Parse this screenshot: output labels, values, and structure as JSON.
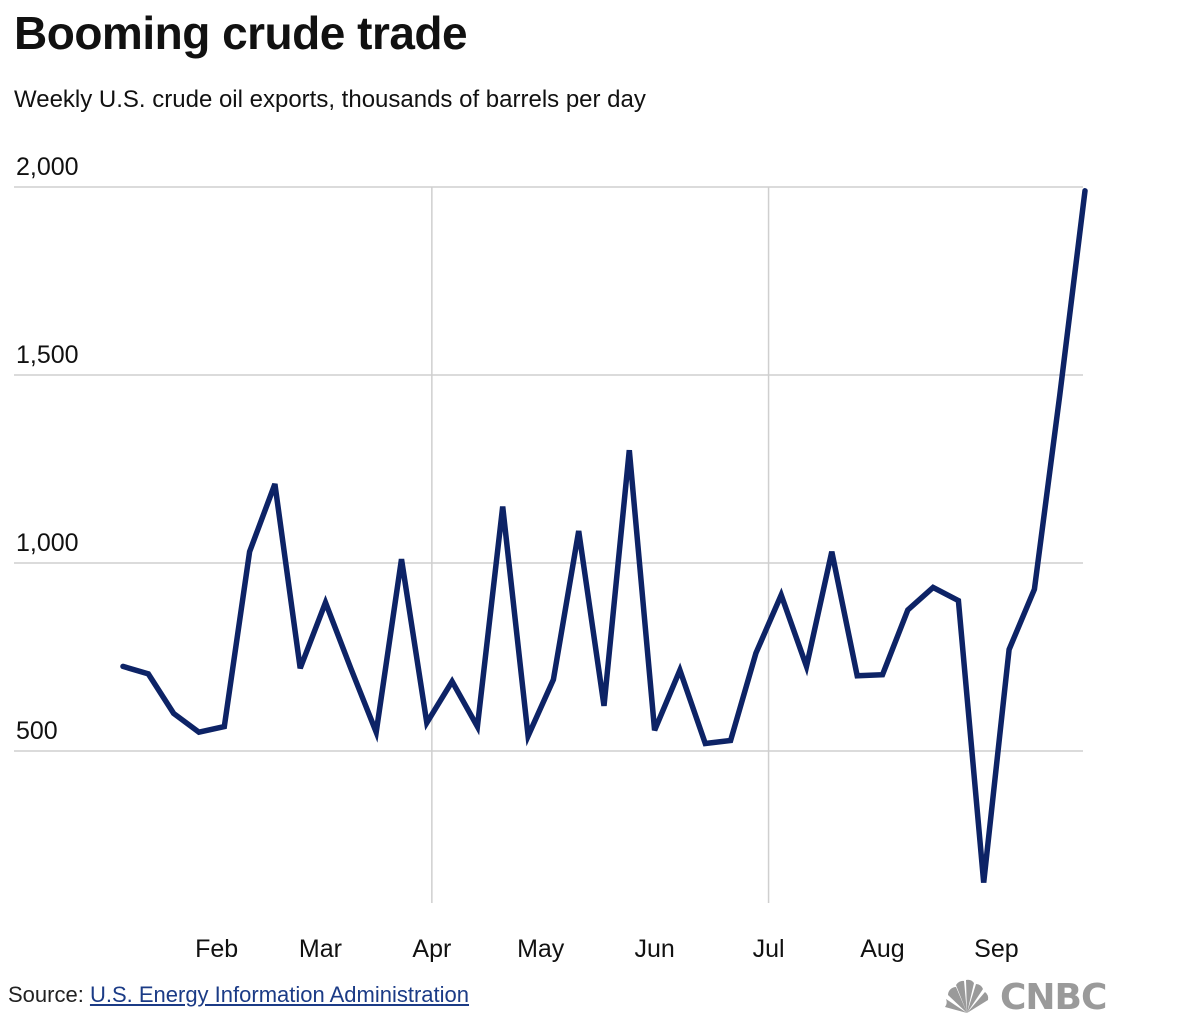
{
  "chart_data": {
    "type": "line",
    "title": "Booming crude trade",
    "subtitle": "Weekly U.S. crude oil exports, thousands of barrels per day",
    "ylim": [
      0,
      2000
    ],
    "y_ticks": [
      2000,
      1500,
      1000,
      500
    ],
    "y_tick_labels": [
      "2,000",
      "1,500",
      "1,000",
      "500"
    ],
    "x_tick_labels": [
      "Feb",
      "Mar",
      "Apr",
      "May",
      "Jun",
      "Jul",
      "Aug",
      "Sep"
    ],
    "x_tick_week_index": [
      3.7,
      7.8,
      12.2,
      16.5,
      21,
      25.5,
      30,
      34.5
    ],
    "vertical_grid_week_index": [
      12.2,
      25.5
    ],
    "grid": true,
    "color": "#0d2366",
    "series": [
      {
        "x_week_index": [
          0,
          1,
          2,
          3,
          4,
          5,
          6,
          7,
          8,
          9,
          10,
          11,
          12,
          13,
          14,
          15,
          16,
          17,
          18,
          19,
          20,
          21,
          22,
          23,
          24,
          25,
          26,
          27,
          28,
          29,
          30,
          31,
          32,
          33,
          34,
          35,
          36,
          37,
          38
        ],
        "values": [
          725,
          705,
          600,
          550,
          565,
          1030,
          1210,
          720,
          895,
          720,
          550,
          1010,
          575,
          685,
          565,
          1150,
          540,
          690,
          1085,
          620,
          1300,
          555,
          715,
          520,
          528,
          760,
          915,
          725,
          1030,
          700,
          703,
          875,
          935,
          900,
          150,
          770,
          930,
          1445,
          1990
        ]
      }
    ]
  },
  "source": {
    "label": "Source:",
    "link_text": "U.S. Energy Information Administration"
  },
  "logo": {
    "text": "CNBC",
    "icon": "nbc-peacock-icon"
  }
}
